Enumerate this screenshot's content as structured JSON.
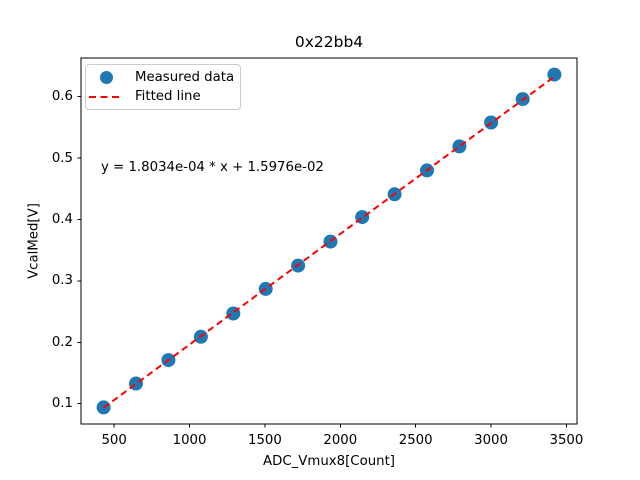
{
  "chart_data": {
    "type": "scatter",
    "title": "0x22bb4",
    "xlabel": "ADC_Vmux8[Count]",
    "ylabel": "VcalMed[V]",
    "annotation": "y = 1.8034e-04 * x + 1.5976e-02",
    "background": "#ffffff",
    "grid": false,
    "legend_position": "upper left",
    "xlim": [
      280,
      3570
    ],
    "ylim": [
      0.067,
      0.663
    ],
    "x_ticks": [
      500,
      1000,
      1500,
      2000,
      2500,
      3000,
      3500
    ],
    "x_tick_labels": [
      "500",
      "1000",
      "1500",
      "2000",
      "2500",
      "3000",
      "3500"
    ],
    "y_ticks": [
      0.1,
      0.2,
      0.3,
      0.4,
      0.5,
      0.6
    ],
    "y_tick_labels": [
      "0.1",
      "0.2",
      "0.3",
      "0.4",
      "0.5",
      "0.6"
    ],
    "series": [
      {
        "name": "Measured data",
        "type": "scatter",
        "color": "#1f77b4",
        "marker": "circle",
        "x": [
          430,
          645,
          860,
          1075,
          1290,
          1505,
          1720,
          1935,
          2145,
          2360,
          2575,
          2790,
          3000,
          3210,
          3420
        ],
        "y": [
          0.094,
          0.133,
          0.171,
          0.209,
          0.247,
          0.287,
          0.325,
          0.364,
          0.404,
          0.441,
          0.48,
          0.519,
          0.558,
          0.596,
          0.636
        ]
      },
      {
        "name": "Fitted line",
        "type": "line",
        "linestyle": "dashed",
        "color": "#ff0000",
        "fit": {
          "slope": 0.00018034,
          "intercept": 0.015976
        },
        "x_range": [
          430,
          3420
        ]
      }
    ]
  }
}
